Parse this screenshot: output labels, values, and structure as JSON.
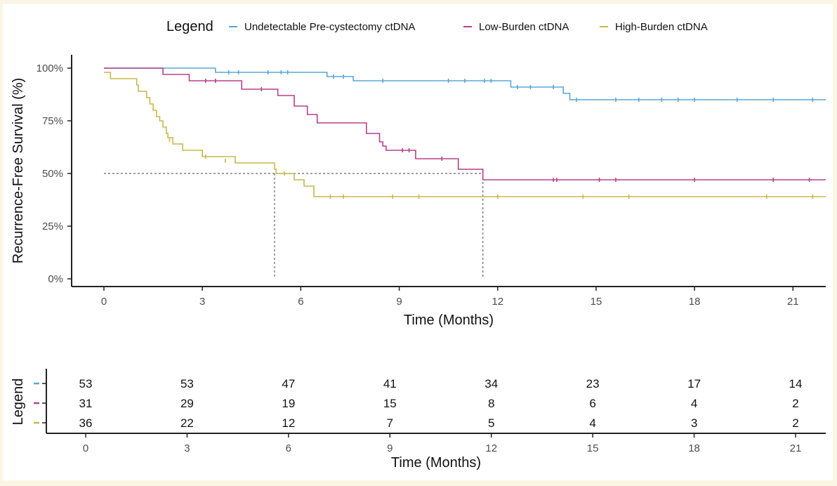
{
  "chart_data": {
    "type": "line",
    "subtype": "kaplan-meier",
    "legend": {
      "title": "Legend",
      "position": "top",
      "entries": [
        {
          "label": "Undetectable Pre-cystectomy ctDNA",
          "color": "#5aa7d9"
        },
        {
          "label": "Low-Burden ctDNA",
          "color": "#b7408a"
        },
        {
          "label": "High-Burden ctDNA",
          "color": "#c9b84a"
        }
      ]
    },
    "xlabel": "Time (Months)",
    "ylabel": "Recurrence-Free Survival (%)",
    "xlim": [
      0,
      22
    ],
    "ylim": [
      0,
      100
    ],
    "x_ticks": [
      0,
      3,
      6,
      9,
      12,
      15,
      18,
      21
    ],
    "y_ticks": [
      {
        "value": 0,
        "label": "0%"
      },
      {
        "value": 25,
        "label": "25%"
      },
      {
        "value": 50,
        "label": "50%"
      },
      {
        "value": 75,
        "label": "75%"
      },
      {
        "value": 100,
        "label": "100%"
      }
    ],
    "median_reference": {
      "y": 50,
      "x_values": [
        5.2,
        11.55
      ]
    },
    "series": [
      {
        "name": "Undetectable Pre-cystectomy ctDNA",
        "color": "#5aa7d9",
        "steps": [
          [
            0,
            100
          ],
          [
            3.4,
            98
          ],
          [
            6.8,
            96
          ],
          [
            7.6,
            94
          ],
          [
            12.4,
            91
          ],
          [
            14.0,
            88
          ],
          [
            14.2,
            85
          ],
          [
            22,
            85
          ]
        ],
        "censored": [
          [
            3.8,
            98
          ],
          [
            4.1,
            98
          ],
          [
            5.0,
            98
          ],
          [
            5.4,
            98
          ],
          [
            5.6,
            98
          ],
          [
            7.0,
            96
          ],
          [
            7.3,
            96
          ],
          [
            8.5,
            94
          ],
          [
            10.5,
            94
          ],
          [
            11.0,
            94
          ],
          [
            11.6,
            94
          ],
          [
            11.8,
            94
          ],
          [
            12.6,
            91
          ],
          [
            13.0,
            91
          ],
          [
            13.7,
            91
          ],
          [
            14.4,
            85
          ],
          [
            15.6,
            85
          ],
          [
            16.3,
            85
          ],
          [
            17.0,
            85
          ],
          [
            17.5,
            85
          ],
          [
            18.0,
            85
          ],
          [
            19.3,
            85
          ],
          [
            20.4,
            85
          ],
          [
            21.6,
            85
          ]
        ]
      },
      {
        "name": "Low-Burden ctDNA",
        "color": "#b7408a",
        "steps": [
          [
            0,
            100
          ],
          [
            1.8,
            97
          ],
          [
            2.6,
            94
          ],
          [
            4.2,
            90
          ],
          [
            5.3,
            87
          ],
          [
            5.8,
            82
          ],
          [
            6.2,
            78
          ],
          [
            6.5,
            74
          ],
          [
            8.0,
            69
          ],
          [
            8.4,
            65
          ],
          [
            8.4,
            65
          ],
          [
            8.5,
            63
          ],
          [
            8.6,
            61
          ],
          [
            9.5,
            57
          ],
          [
            10.8,
            52
          ],
          [
            11.55,
            47
          ],
          [
            22,
            47
          ]
        ],
        "censored": [
          [
            3.1,
            94
          ],
          [
            3.4,
            94
          ],
          [
            4.8,
            90
          ],
          [
            9.1,
            61
          ],
          [
            9.3,
            61
          ],
          [
            10.3,
            57
          ],
          [
            13.7,
            47
          ],
          [
            13.8,
            47
          ],
          [
            15.1,
            47
          ],
          [
            15.6,
            47
          ],
          [
            18.0,
            47
          ],
          [
            20.4,
            47
          ],
          [
            21.5,
            47
          ]
        ]
      },
      {
        "name": "High-Burden ctDNA",
        "color": "#c9b84a",
        "steps": [
          [
            0,
            98
          ],
          [
            0.2,
            95
          ],
          [
            1.0,
            92
          ],
          [
            1.05,
            89
          ],
          [
            1.3,
            86
          ],
          [
            1.4,
            83
          ],
          [
            1.5,
            80
          ],
          [
            1.6,
            77
          ],
          [
            1.7,
            75
          ],
          [
            1.8,
            72
          ],
          [
            1.9,
            69
          ],
          [
            1.95,
            67
          ],
          [
            2.1,
            64
          ],
          [
            2.4,
            61
          ],
          [
            3.0,
            58
          ],
          [
            4.0,
            55
          ],
          [
            5.2,
            52
          ],
          [
            5.25,
            50
          ],
          [
            5.8,
            47
          ],
          [
            6.1,
            44
          ],
          [
            6.4,
            39
          ],
          [
            22,
            39
          ]
        ],
        "censored": [
          [
            2.0,
            66
          ],
          [
            3.1,
            58
          ],
          [
            3.7,
            56
          ],
          [
            5.5,
            50
          ],
          [
            6.9,
            39
          ],
          [
            7.3,
            39
          ],
          [
            8.8,
            39
          ],
          [
            9.6,
            39
          ],
          [
            12.0,
            39
          ],
          [
            14.6,
            39
          ],
          [
            16.0,
            39
          ],
          [
            20.2,
            39
          ],
          [
            21.6,
            39
          ]
        ]
      }
    ]
  },
  "risk_table": {
    "ylabel": "Legend",
    "xlabel": "Time (Months)",
    "x_ticks": [
      0,
      3,
      6,
      9,
      12,
      15,
      18,
      21
    ],
    "rows": [
      {
        "color": "#5aa7d9",
        "counts": [
          "53",
          "53",
          "47",
          "41",
          "34",
          "23",
          "17",
          "14"
        ]
      },
      {
        "color": "#b7408a",
        "counts": [
          "31",
          "29",
          "19",
          "15",
          "8",
          "6",
          "4",
          "2"
        ]
      },
      {
        "color": "#c9b84a",
        "counts": [
          "36",
          "22",
          "12",
          "7",
          "5",
          "4",
          "3",
          "2"
        ]
      }
    ]
  }
}
